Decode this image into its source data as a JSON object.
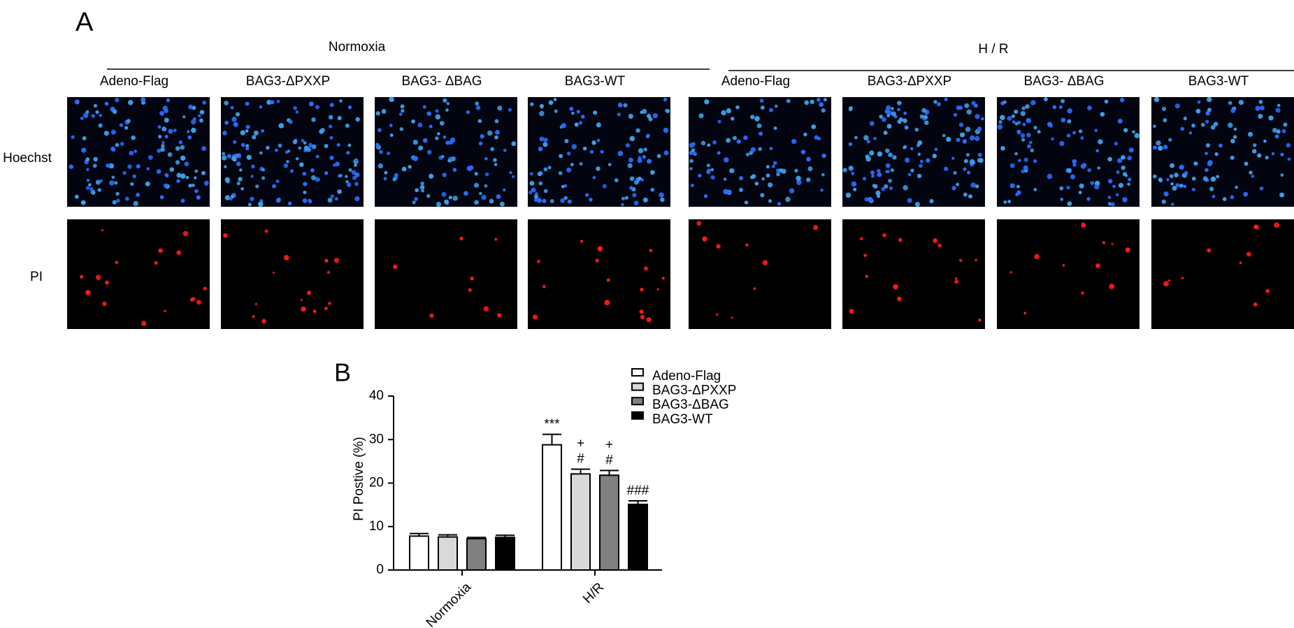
{
  "panel_a": {
    "label": "A",
    "groups": [
      {
        "title": "Normoxia",
        "columns": [
          "Adeno-Flag",
          "BAG3-ΔPXXP",
          "BAG3- ΔBAG",
          "BAG3-WT"
        ]
      },
      {
        "title": "H / R",
        "columns": [
          "Adeno-Flag",
          "BAG3-ΔPXXP",
          "BAG3- ΔBAG",
          "BAG3-WT"
        ]
      }
    ],
    "rows": [
      "Hoechst",
      "PI"
    ]
  },
  "chart_data": {
    "type": "bar",
    "panel_label": "B",
    "y_label": "PI Postive (%)",
    "categories": [
      "Normoxia",
      "H/R"
    ],
    "series": [
      {
        "name": "Adeno-Flag",
        "color": "#ffffff",
        "values": [
          7.8,
          28.8
        ],
        "errors": [
          0.6,
          2.4
        ],
        "annotations": [
          [],
          [
            "***"
          ]
        ]
      },
      {
        "name": "BAG3-ΔPXXP",
        "color": "#d9d9d9",
        "values": [
          7.6,
          22.1
        ],
        "errors": [
          0.5,
          1.1
        ],
        "annotations": [
          [],
          [
            "+",
            "#"
          ]
        ]
      },
      {
        "name": "BAG3-ΔBAG",
        "color": "#808080",
        "values": [
          7.2,
          21.8
        ],
        "errors": [
          0.3,
          1.1
        ],
        "annotations": [
          [],
          [
            "+",
            "#"
          ]
        ]
      },
      {
        "name": "BAG3-WT",
        "color": "#000000",
        "values": [
          7.5,
          15.1
        ],
        "errors": [
          0.5,
          0.8
        ],
        "annotations": [
          [],
          [
            "###"
          ]
        ]
      }
    ],
    "ylim": [
      0,
      40
    ],
    "yticks": [
      0,
      10,
      20,
      30,
      40
    ],
    "grid": false
  }
}
